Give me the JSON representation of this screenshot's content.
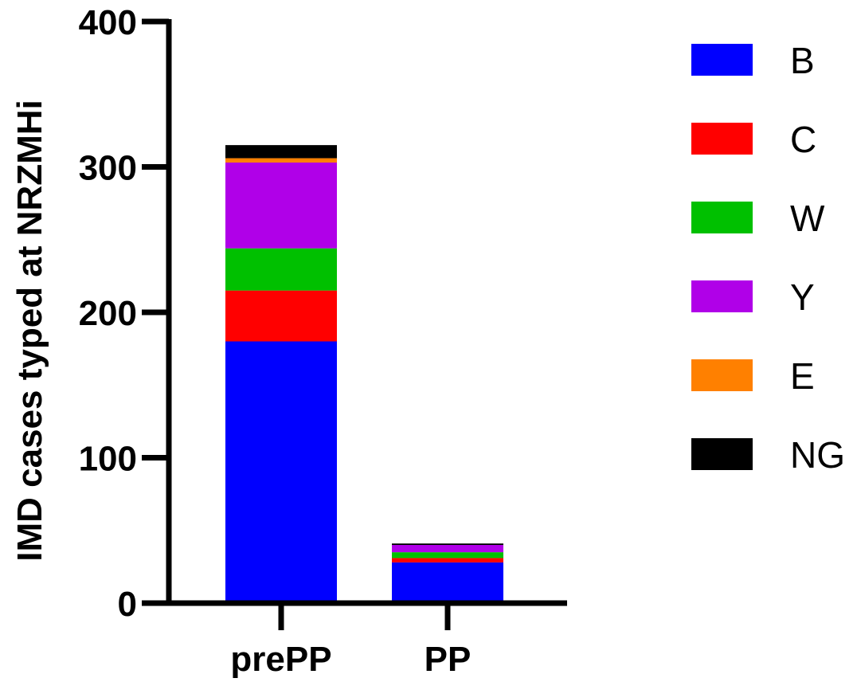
{
  "chart_data": {
    "type": "bar",
    "stacked": true,
    "title": "",
    "xlabel": "",
    "ylabel": "IMD cases typed at NRZMHi",
    "ylim": [
      0,
      400
    ],
    "yticks": [
      "0",
      "100",
      "200",
      "300",
      "400"
    ],
    "categories": [
      "prePP",
      "PP"
    ],
    "series": [
      {
        "name": "B",
        "color": "#0000ff",
        "values": [
          180,
          28
        ]
      },
      {
        "name": "C",
        "color": "#ff0000",
        "values": [
          35,
          3
        ]
      },
      {
        "name": "W",
        "color": "#00c000",
        "values": [
          29,
          4
        ]
      },
      {
        "name": "Y",
        "color": "#b000e8",
        "values": [
          59,
          5
        ]
      },
      {
        "name": "E",
        "color": "#ff8000",
        "values": [
          3,
          0
        ]
      },
      {
        "name": "NG",
        "color": "#000000",
        "values": [
          9,
          1
        ]
      }
    ],
    "grid": false,
    "legend_position": "right"
  }
}
